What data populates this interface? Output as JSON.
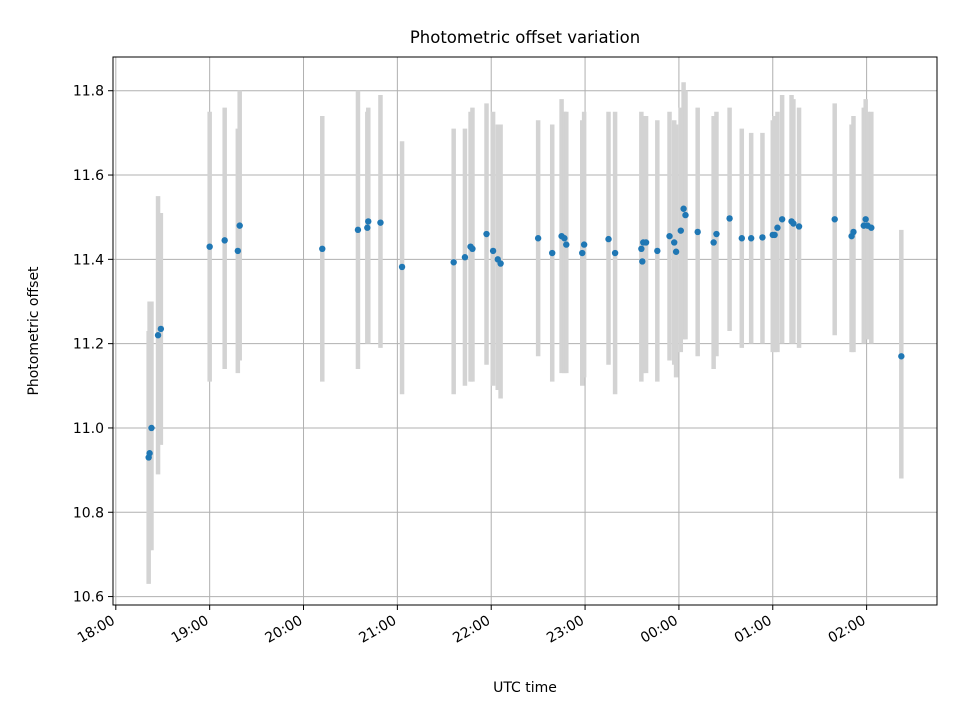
{
  "chart_data": {
    "type": "scatter",
    "title": "Photometric offset variation",
    "xlabel": "UTC time",
    "ylabel": "Photometric offset",
    "x_axis": "time (hours; 24+ = after midnight)",
    "xlim": [
      17.97,
      26.75
    ],
    "ylim": [
      10.58,
      11.88
    ],
    "x_ticks": [
      {
        "value": 18,
        "label": "18:00"
      },
      {
        "value": 19,
        "label": "19:00"
      },
      {
        "value": 20,
        "label": "20:00"
      },
      {
        "value": 21,
        "label": "21:00"
      },
      {
        "value": 22,
        "label": "22:00"
      },
      {
        "value": 23,
        "label": "23:00"
      },
      {
        "value": 24,
        "label": "00:00"
      },
      {
        "value": 25,
        "label": "01:00"
      },
      {
        "value": 26,
        "label": "02:00"
      }
    ],
    "y_ticks": [
      {
        "value": 10.6,
        "label": "10.6"
      },
      {
        "value": 10.8,
        "label": "10.8"
      },
      {
        "value": 11.0,
        "label": "11.0"
      },
      {
        "value": 11.2,
        "label": "11.2"
      },
      {
        "value": 11.4,
        "label": "11.4"
      },
      {
        "value": 11.6,
        "label": "11.6"
      },
      {
        "value": 11.8,
        "label": "11.8"
      }
    ],
    "grid": true,
    "colors": {
      "point": "#1f77b4",
      "errorbar": "#d3d3d3",
      "grid": "#b0b0b0"
    },
    "series": [
      {
        "x": [
          18.35,
          18.36,
          18.38,
          18.45,
          18.48,
          19.0,
          19.16,
          19.3,
          19.32,
          20.2,
          20.58,
          20.68,
          20.69,
          20.82,
          21.05,
          21.6,
          21.72,
          21.78,
          21.8,
          21.95,
          22.02,
          22.07,
          22.1,
          22.5,
          22.65,
          22.75,
          22.78,
          22.8,
          22.97,
          22.99,
          23.25,
          23.32,
          23.6,
          23.61,
          23.62,
          23.65,
          23.77,
          23.9,
          23.95,
          23.97,
          24.02,
          24.05,
          24.07,
          24.2,
          24.37,
          24.4,
          24.54,
          24.67,
          24.77,
          24.89,
          25.0,
          25.02,
          25.05,
          25.1,
          25.2,
          25.22,
          25.28,
          25.66,
          25.84,
          25.86,
          25.97,
          25.99,
          26.01,
          26.05,
          26.37
        ],
        "y": [
          10.93,
          10.94,
          11.0,
          11.22,
          11.235,
          11.43,
          11.445,
          11.42,
          11.48,
          11.425,
          11.47,
          11.475,
          11.49,
          11.487,
          11.382,
          11.393,
          11.405,
          11.43,
          11.425,
          11.46,
          11.42,
          11.4,
          11.39,
          11.45,
          11.415,
          11.455,
          11.45,
          11.435,
          11.415,
          11.435,
          11.448,
          11.415,
          11.425,
          11.395,
          11.44,
          11.44,
          11.42,
          11.455,
          11.44,
          11.418,
          11.468,
          11.52,
          11.505,
          11.465,
          11.44,
          11.46,
          11.497,
          11.45,
          11.45,
          11.452,
          11.458,
          11.458,
          11.475,
          11.495,
          11.49,
          11.485,
          11.478,
          11.495,
          11.455,
          11.465,
          11.48,
          11.495,
          11.48,
          11.475,
          11.17
        ],
        "err_low": [
          10.63,
          10.71,
          10.71,
          10.89,
          10.96,
          11.11,
          11.14,
          11.13,
          11.16,
          11.11,
          11.14,
          11.2,
          11.2,
          11.19,
          11.08,
          11.08,
          11.1,
          11.11,
          11.11,
          11.15,
          11.1,
          11.09,
          11.07,
          11.17,
          11.11,
          11.13,
          11.13,
          11.13,
          11.1,
          11.12,
          11.15,
          11.08,
          11.11,
          11.14,
          11.13,
          11.13,
          11.11,
          11.16,
          11.15,
          11.12,
          11.18,
          11.21,
          11.21,
          11.17,
          11.14,
          11.17,
          11.23,
          11.19,
          11.2,
          11.2,
          11.18,
          11.18,
          11.18,
          11.2,
          11.2,
          11.2,
          11.19,
          11.22,
          11.18,
          11.18,
          11.2,
          11.21,
          11.21,
          11.2,
          10.88
        ],
        "err_high": [
          11.23,
          11.3,
          11.3,
          11.55,
          11.51,
          11.75,
          11.76,
          11.71,
          11.8,
          11.74,
          11.8,
          11.75,
          11.76,
          11.79,
          11.68,
          11.71,
          11.71,
          11.75,
          11.76,
          11.77,
          11.75,
          11.72,
          11.72,
          11.73,
          11.72,
          11.78,
          11.75,
          11.75,
          11.73,
          11.75,
          11.75,
          11.75,
          11.75,
          11.7,
          11.74,
          11.74,
          11.73,
          11.75,
          11.73,
          11.72,
          11.76,
          11.82,
          11.8,
          11.76,
          11.74,
          11.75,
          11.76,
          11.71,
          11.7,
          11.7,
          11.73,
          11.74,
          11.75,
          11.79,
          11.79,
          11.78,
          11.76,
          11.77,
          11.72,
          11.74,
          11.76,
          11.78,
          11.75,
          11.75,
          11.47
        ]
      }
    ]
  }
}
